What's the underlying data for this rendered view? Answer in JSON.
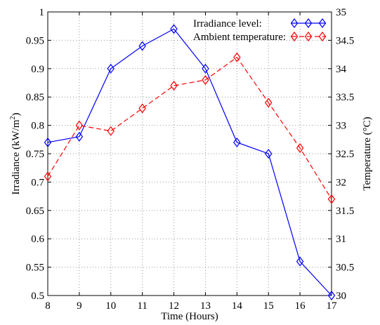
{
  "chart_data": {
    "type": "line",
    "xlabel": "Time (Hours)",
    "y_left_label": "Irradiance (kW/m",
    "y_left_label_sup": "2",
    "y_left_label_end": ")",
    "y_right_label": "Temperature (°C)",
    "xlim": [
      8,
      17
    ],
    "y_left_lim": [
      0.5,
      1.0
    ],
    "y_right_lim": [
      30,
      35
    ],
    "grid": true,
    "legend_position": "top-right",
    "x_ticks": [
      "8",
      "9",
      "10",
      "11",
      "12",
      "13",
      "14",
      "15",
      "16",
      "17"
    ],
    "y_left_ticks": [
      "0.5",
      "0.55",
      "0.6",
      "0.65",
      "0.7",
      "0.75",
      "0.8",
      "0.85",
      "0.9",
      "0.95",
      "1"
    ],
    "y_right_ticks": [
      "30",
      "30.5",
      "31",
      "31.5",
      "32",
      "32.5",
      "33",
      "33.5",
      "34",
      "34.5",
      "35"
    ],
    "x": [
      8,
      9,
      10,
      11,
      12,
      13,
      14,
      15,
      16,
      17
    ],
    "series": [
      {
        "name": "Irradiance level:",
        "axis": "left",
        "color": "#0000ff",
        "line_style": "solid",
        "marker": "diamond",
        "values": [
          0.77,
          0.78,
          0.9,
          0.94,
          0.97,
          0.9,
          0.77,
          0.75,
          0.56,
          0.5
        ]
      },
      {
        "name": "Ambient temperature:",
        "axis": "right",
        "color": "#ff0000",
        "line_style": "dashed",
        "marker": "diamond",
        "values": [
          32.1,
          33.0,
          32.9,
          33.3,
          33.7,
          33.8,
          34.2,
          33.4,
          32.6,
          31.7
        ]
      }
    ]
  }
}
